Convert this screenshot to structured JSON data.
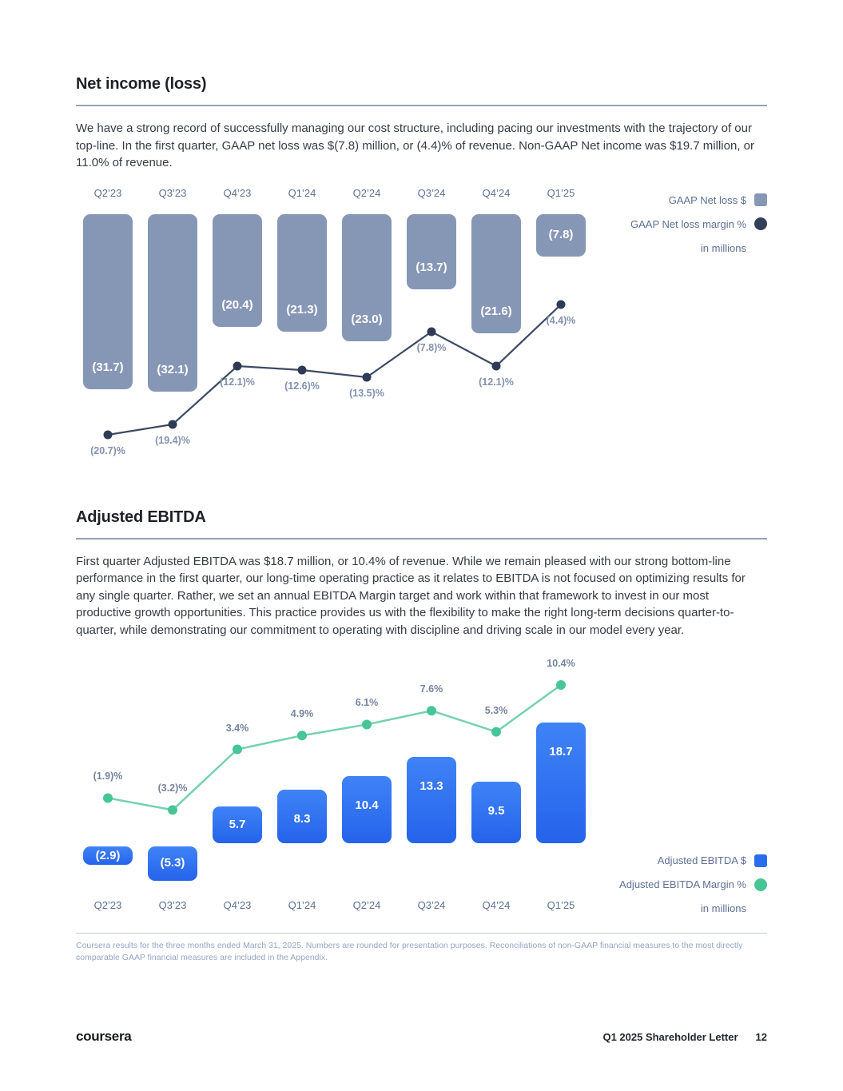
{
  "net_income": {
    "title": "Net income (loss)",
    "paragraph": "We have a strong record of successfully managing our cost structure, including pacing our investments with the trajectory of our top-line. In the first quarter, GAAP net loss was $(7.8) million, or (4.4)% of revenue. Non-GAAP Net income was $19.7 million, or 11.0% of revenue."
  },
  "adjusted_ebitda": {
    "title": "Adjusted EBITDA",
    "paragraph": "First quarter Adjusted EBITDA was $18.7 million, or 10.4% of revenue. While we remain pleased with our strong bottom-line performance in the first quarter, our long-time operating practice as it relates to EBITDA is not focused on optimizing results for any single quarter. Rather, we set an annual EBITDA Margin target and work within that framework to invest in our most productive growth opportunities. This practice provides us with the flexibility to make the right long-term decisions quarter-to-quarter, while demonstrating our commitment to operating with discipline and driving scale in our model every year."
  },
  "chart_data": [
    {
      "id": "net-income",
      "type": "bar+line",
      "categories": [
        "Q2’23",
        "Q3’23",
        "Q4’23",
        "Q1’24",
        "Q2’24",
        "Q3’24",
        "Q4’24",
        "Q1’25"
      ],
      "series": [
        {
          "name": "GAAP Net loss $",
          "type": "bar",
          "values": [
            -31.7,
            -32.1,
            -20.4,
            -21.3,
            -23.0,
            -13.7,
            -21.6,
            -7.8
          ],
          "labels": [
            "(31.7)",
            "(32.1)",
            "(20.4)",
            "(21.3)",
            "(23.0)",
            "(13.7)",
            "(21.6)",
            "(7.8)"
          ],
          "color": "#8697b6"
        },
        {
          "name": "GAAP Net loss margin %",
          "type": "line",
          "values": [
            -20.7,
            -19.4,
            -12.1,
            -12.6,
            -13.5,
            -7.8,
            -12.1,
            -4.4
          ],
          "labels": [
            "(20.7)%",
            "(19.4)%",
            "(12.1)%",
            "(12.6)%",
            "(13.5)%",
            "(7.8)%",
            "(12.1)%",
            "(4.4)%"
          ],
          "color": "#3d4a63",
          "dot_color": "#2e3b55"
        }
      ],
      "unit_note": "in millions",
      "legend_position": "top-right",
      "grid": false
    },
    {
      "id": "adjusted-ebitda",
      "type": "bar+line",
      "categories": [
        "Q2’23",
        "Q3’23",
        "Q4’23",
        "Q1’24",
        "Q2’24",
        "Q3’24",
        "Q4’24",
        "Q1’25"
      ],
      "series": [
        {
          "name": "Adjusted EBITDA $",
          "type": "bar",
          "values": [
            -2.9,
            -5.3,
            5.7,
            8.3,
            10.4,
            13.3,
            9.5,
            18.7
          ],
          "labels": [
            "(2.9)",
            "(5.3)",
            "5.7",
            "8.3",
            "10.4",
            "13.3",
            "9.5",
            "18.7"
          ],
          "color_top": "#3f83f6",
          "color_bottom": "#2563eb"
        },
        {
          "name": "Adjusted EBITDA Margin %",
          "type": "line",
          "values": [
            -1.9,
            -3.2,
            3.4,
            4.9,
            6.1,
            7.6,
            5.3,
            10.4
          ],
          "labels": [
            "(1.9)%",
            "(3.2)%",
            "3.4%",
            "4.9%",
            "6.1%",
            "7.6%",
            "5.3%",
            "10.4%"
          ],
          "color": "#74d2ad",
          "dot_color": "#47c695"
        }
      ],
      "unit_note": "in millions",
      "legend_position": "bottom-right",
      "grid": false
    }
  ],
  "page": {
    "footnote": "Coursera results for the three months ended March 31, 2025. Numbers are rounded for presentation purposes. Reconciliations of non-GAAP financial measures to the most directly comparable GAAP financial measures are included in the Appendix.",
    "footer": {
      "logo": "coursera",
      "doc_title": "Q1 2025 Shareholder Letter",
      "page_number": "12"
    }
  }
}
